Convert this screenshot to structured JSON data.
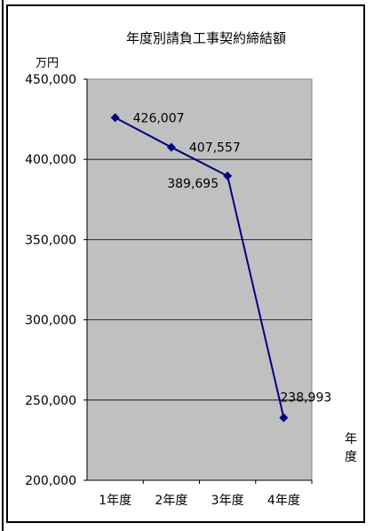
{
  "chart_data": {
    "type": "line",
    "title": "年度別請負工事契約締結額",
    "ylabel": "万円",
    "xlabel": "年度",
    "categories": [
      "1年度",
      "2年度",
      "3年度",
      "4年度"
    ],
    "series": [
      {
        "values": [
          426007,
          407557,
          389695,
          238993
        ]
      }
    ],
    "data_labels": [
      "426,007",
      "407,557",
      "389,695",
      "238,993"
    ],
    "ylim": [
      200000,
      450000
    ],
    "yticks": [
      200000,
      250000,
      300000,
      350000,
      400000,
      450000
    ],
    "ytick_labels": [
      "200,000",
      "250,000",
      "300,000",
      "350,000",
      "400,000",
      "450,000"
    ],
    "grid": true,
    "colors": {
      "line": "#000080",
      "plot_bg": "#c0c0c0",
      "grid": "#000000"
    }
  }
}
